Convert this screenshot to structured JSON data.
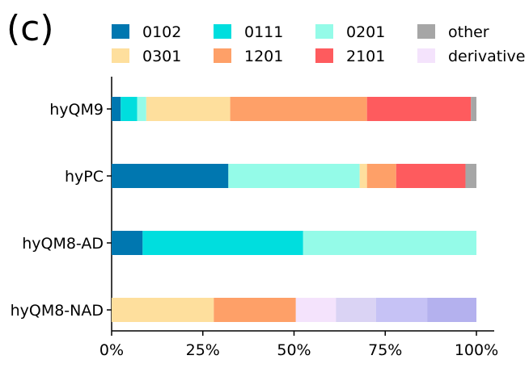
{
  "panel_label": "(c)",
  "colors": {
    "0102": "#0077b0",
    "0111": "#00dede",
    "0201": "#94fbe8",
    "other": "#a6a6a6",
    "0301": "#fedf9d",
    "1201": "#fea068",
    "2101": "#fe5b5e",
    "derivative": "#f4e3fc",
    "derivative_2": "#dad3f4",
    "derivative_3": "#c6c2f5",
    "derivative_4": "#b4b1ee"
  },
  "chart_data": {
    "type": "bar",
    "orientation": "horizontal",
    "stacked": true,
    "categories": [
      "hyQM9",
      "hyPC",
      "hyQM8-AD",
      "hyQM8-NAD"
    ],
    "xlim": [
      0,
      100
    ],
    "x_ticks": [
      0,
      25,
      50,
      75,
      100
    ],
    "x_tick_labels": [
      "0%",
      "25%",
      "50%",
      "75%",
      "100%"
    ],
    "legend": {
      "placement": "top",
      "columns": 4,
      "entries": [
        {
          "label": "0102",
          "color_key": "0102"
        },
        {
          "label": "0111",
          "color_key": "0111"
        },
        {
          "label": "0201",
          "color_key": "0201"
        },
        {
          "label": "other",
          "color_key": "other"
        },
        {
          "label": "0301",
          "color_key": "0301"
        },
        {
          "label": "1201",
          "color_key": "1201"
        },
        {
          "label": "2101",
          "color_key": "2101"
        },
        {
          "label": "derivative",
          "color_key": "derivative"
        }
      ]
    },
    "rows": [
      {
        "category": "hyQM9",
        "segments": [
          {
            "color_key": "0102",
            "value": 2.5
          },
          {
            "color_key": "0111",
            "value": 4.5
          },
          {
            "color_key": "0201",
            "value": 2.5
          },
          {
            "color_key": "0301",
            "value": 23
          },
          {
            "color_key": "1201",
            "value": 37.5
          },
          {
            "color_key": "2101",
            "value": 28.5
          },
          {
            "color_key": "other",
            "value": 1.5
          }
        ]
      },
      {
        "category": "hyPC",
        "segments": [
          {
            "color_key": "0102",
            "value": 32
          },
          {
            "color_key": "0201",
            "value": 36
          },
          {
            "color_key": "0301",
            "value": 2
          },
          {
            "color_key": "1201",
            "value": 8
          },
          {
            "color_key": "2101",
            "value": 19
          },
          {
            "color_key": "other",
            "value": 3
          }
        ]
      },
      {
        "category": "hyQM8-AD",
        "segments": [
          {
            "color_key": "0102",
            "value": 8.5
          },
          {
            "color_key": "0111",
            "value": 44
          },
          {
            "color_key": "0201",
            "value": 47.5
          }
        ]
      },
      {
        "category": "hyQM8-NAD",
        "segments": [
          {
            "color_key": "0301",
            "value": 28
          },
          {
            "color_key": "1201",
            "value": 22.5
          },
          {
            "color_key": "derivative",
            "value": 11
          },
          {
            "color_key": "derivative_2",
            "value": 11
          },
          {
            "color_key": "derivative_3",
            "value": 14
          },
          {
            "color_key": "derivative_4",
            "value": 13.5
          }
        ]
      }
    ]
  }
}
